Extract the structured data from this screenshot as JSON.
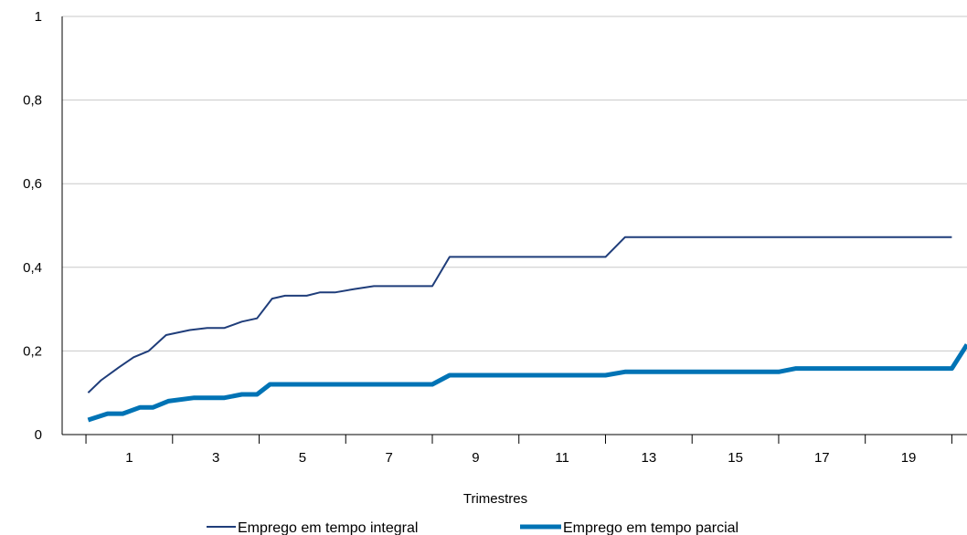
{
  "chart_data": {
    "type": "line",
    "xlabel": "Trimestres",
    "ylabel": "",
    "xlim": [
      0,
      20
    ],
    "ylim": [
      0,
      1
    ],
    "y_ticks": [
      {
        "value": 0,
        "label": "0"
      },
      {
        "value": 0.2,
        "label": "0,2"
      },
      {
        "value": 0.4,
        "label": "0,4"
      },
      {
        "value": 0.6,
        "label": "0,6"
      },
      {
        "value": 0.8,
        "label": "0,8"
      },
      {
        "value": 1,
        "label": "1"
      }
    ],
    "x_ticks": [
      {
        "value": 1,
        "label": "1"
      },
      {
        "value": 3,
        "label": "3"
      },
      {
        "value": 5,
        "label": "5"
      },
      {
        "value": 7,
        "label": "7"
      },
      {
        "value": 9,
        "label": "9"
      },
      {
        "value": 11,
        "label": "11"
      },
      {
        "value": 13,
        "label": "13"
      },
      {
        "value": 15,
        "label": "15"
      },
      {
        "value": 17,
        "label": "17"
      },
      {
        "value": 19,
        "label": "19"
      }
    ],
    "grid": true,
    "legend_position": "bottom",
    "series": [
      {
        "name": "Emprego em tempo integral",
        "color": "#1f3d7a",
        "points": [
          [
            0.05,
            0.1
          ],
          [
            0.35,
            0.13
          ],
          [
            0.75,
            0.16
          ],
          [
            1.1,
            0.185
          ],
          [
            1.45,
            0.2
          ],
          [
            1.85,
            0.238
          ],
          [
            2.4,
            0.25
          ],
          [
            2.8,
            0.255
          ],
          [
            3.2,
            0.255
          ],
          [
            3.6,
            0.27
          ],
          [
            3.95,
            0.278
          ],
          [
            4.3,
            0.325
          ],
          [
            4.6,
            0.332
          ],
          [
            5.1,
            0.332
          ],
          [
            5.4,
            0.34
          ],
          [
            5.75,
            0.34
          ],
          [
            6.2,
            0.348
          ],
          [
            6.65,
            0.355
          ],
          [
            8.0,
            0.355
          ],
          [
            8.4,
            0.425
          ],
          [
            12.0,
            0.425
          ],
          [
            12.45,
            0.472
          ],
          [
            20.0,
            0.472
          ]
        ]
      },
      {
        "name": "Emprego em tempo parcial",
        "color": "#0073b5",
        "points": [
          [
            0.05,
            0.035
          ],
          [
            0.5,
            0.05
          ],
          [
            0.85,
            0.05
          ],
          [
            1.25,
            0.065
          ],
          [
            1.55,
            0.065
          ],
          [
            1.9,
            0.08
          ],
          [
            2.5,
            0.088
          ],
          [
            3.2,
            0.088
          ],
          [
            3.6,
            0.096
          ],
          [
            3.95,
            0.096
          ],
          [
            4.25,
            0.12
          ],
          [
            8.0,
            0.12
          ],
          [
            8.4,
            0.142
          ],
          [
            12.0,
            0.142
          ],
          [
            12.45,
            0.15
          ],
          [
            16.0,
            0.15
          ],
          [
            16.4,
            0.158
          ],
          [
            20.0,
            0.158
          ],
          [
            20.35,
            0.215
          ]
        ]
      }
    ]
  }
}
